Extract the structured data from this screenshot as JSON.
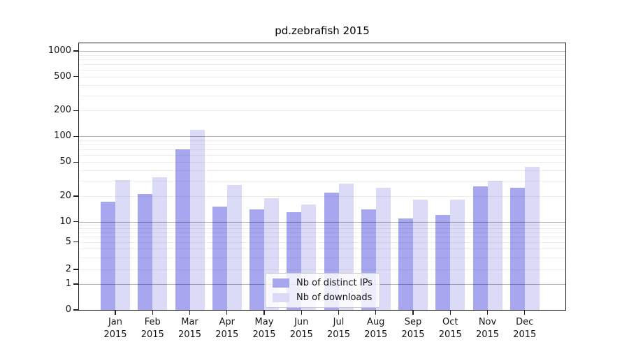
{
  "chart_data": {
    "type": "bar",
    "title": "pd.zebrafish 2015",
    "categories": [
      "Jan",
      "Feb",
      "Mar",
      "Apr",
      "May",
      "Jun",
      "Jul",
      "Aug",
      "Sep",
      "Oct",
      "Nov",
      "Dec"
    ],
    "category_year": "2015",
    "series": [
      {
        "name": "Nb of distinct IPs",
        "key": "distinct-ips",
        "color": "#a7a7f0",
        "values": [
          17,
          21,
          70,
          15,
          14,
          13,
          22,
          14,
          11,
          12,
          26,
          25
        ]
      },
      {
        "name": "Nb of downloads",
        "key": "downloads",
        "color": "#dbdbf8",
        "values": [
          31,
          33,
          120,
          27,
          19,
          16,
          28,
          25,
          18,
          18,
          30,
          44
        ]
      }
    ],
    "yticks": [
      "0",
      "1",
      "2",
      "5",
      "10",
      "20",
      "50",
      "100",
      "200",
      "500",
      "1000"
    ],
    "scale": "symlog",
    "ylim": [
      0,
      1600
    ],
    "grid": true,
    "legend_position": "lower center"
  }
}
